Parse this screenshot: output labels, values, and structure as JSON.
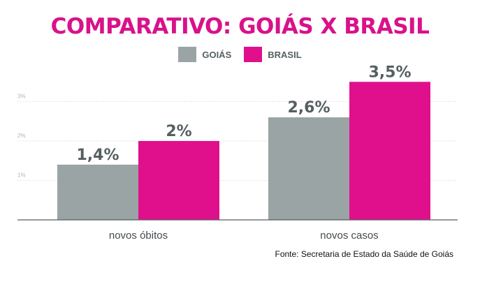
{
  "chart_data": {
    "type": "bar",
    "title": "COMPARATIVO: GOIÁS X BRASIL",
    "categories": [
      "novos óbitos",
      "novos casos"
    ],
    "series": [
      {
        "name": "GOIÁS",
        "color": "#9aa4a4",
        "values": [
          1.4,
          2.6
        ],
        "labels": [
          "1,4%",
          "2,6%"
        ]
      },
      {
        "name": "BRASIL",
        "color": "#e0108d",
        "values": [
          2,
          3.5
        ],
        "labels": [
          "2%",
          "3,5%"
        ]
      }
    ],
    "yticks": [
      {
        "value": 1,
        "label": "1%"
      },
      {
        "value": 2,
        "label": "2%"
      },
      {
        "value": 3,
        "label": "3%"
      }
    ],
    "ylim": [
      0,
      3.5
    ],
    "grid": true,
    "legend": "top",
    "source": "Fonte: Secretaria de Estado da Saúde de Goiás"
  }
}
